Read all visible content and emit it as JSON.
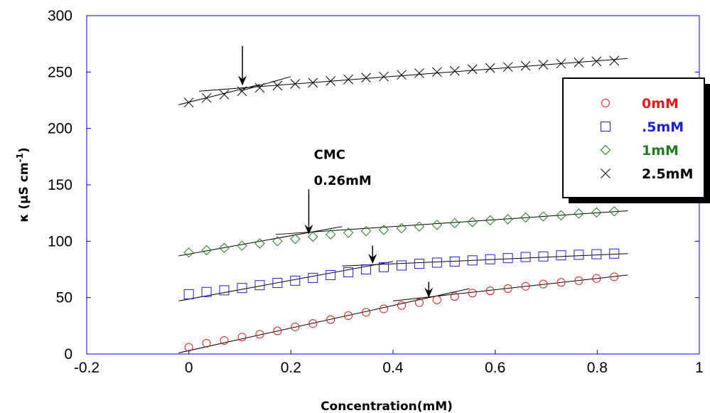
{
  "chart_data": {
    "type": "scatter",
    "xlabel": "Concentration(mM)",
    "ylabel": "κ (μS cm",
    "ylabel_sup": "-1",
    "ylabel_close": ")",
    "xlim": [
      -0.2,
      1.0
    ],
    "ylim": [
      0,
      300
    ],
    "xticks": [
      "-0.2",
      "0",
      "0.2",
      "0.4",
      "0.6",
      "0.8",
      "1"
    ],
    "yticks": [
      "0",
      "50",
      "100",
      "150",
      "200",
      "250",
      "300"
    ],
    "grid": false,
    "legend_position": "right",
    "series": [
      {
        "name": "0mM",
        "marker": "circle",
        "color": "#e31a1c",
        "x": [
          0,
          0.0347,
          0.0694,
          0.1042,
          0.1389,
          0.1736,
          0.2083,
          0.2431,
          0.2778,
          0.3125,
          0.3472,
          0.3819,
          0.4167,
          0.4514,
          0.4861,
          0.5208,
          0.5556,
          0.5903,
          0.625,
          0.6597,
          0.6944,
          0.7292,
          0.7639,
          0.7986,
          0.8333
        ],
        "y": [
          6,
          9.5,
          12,
          15,
          17.5,
          20.5,
          24,
          27,
          30.5,
          34,
          37,
          40,
          43,
          45.5,
          48,
          51,
          54,
          56,
          58,
          60,
          62,
          63.5,
          65,
          67,
          68.5
        ]
      },
      {
        "name": ".5mM",
        "marker": "square",
        "color": "#1f1fd6",
        "x": [
          0,
          0.0347,
          0.0694,
          0.1042,
          0.1389,
          0.1736,
          0.2083,
          0.2431,
          0.2778,
          0.3125,
          0.3472,
          0.3819,
          0.4167,
          0.4514,
          0.4861,
          0.5208,
          0.5556,
          0.5903,
          0.625,
          0.6597,
          0.6944,
          0.7292,
          0.7639,
          0.7986,
          0.8333
        ],
        "y": [
          53,
          55,
          56.5,
          58.5,
          61,
          63,
          65,
          67.5,
          70,
          72.5,
          75,
          77,
          78.5,
          80,
          81,
          82,
          83,
          84,
          85,
          86,
          86.5,
          87.5,
          88,
          88.5,
          89
        ]
      },
      {
        "name": "1mM",
        "marker": "diamond",
        "color": "#1e7b1e",
        "x": [
          0,
          0.0347,
          0.0694,
          0.1042,
          0.1389,
          0.1736,
          0.2083,
          0.2431,
          0.2778,
          0.3125,
          0.3472,
          0.3819,
          0.4167,
          0.4514,
          0.4861,
          0.5208,
          0.5556,
          0.5903,
          0.625,
          0.6597,
          0.6944,
          0.7292,
          0.7639,
          0.7986,
          0.8333
        ],
        "y": [
          90,
          92,
          94,
          96,
          98,
          100,
          102,
          104,
          106,
          107.5,
          109,
          110,
          111.5,
          113,
          114.5,
          116,
          117,
          118.5,
          119.5,
          121,
          122,
          123,
          124.5,
          125.5,
          126.5
        ]
      },
      {
        "name": "2.5mM",
        "marker": "x",
        "color": "#000000",
        "x": [
          0,
          0.0347,
          0.0694,
          0.1042,
          0.1389,
          0.1736,
          0.2083,
          0.2431,
          0.2778,
          0.3125,
          0.3472,
          0.3819,
          0.4167,
          0.4514,
          0.4861,
          0.5208,
          0.5556,
          0.5903,
          0.625,
          0.6597,
          0.6944,
          0.7292,
          0.7639,
          0.7986,
          0.8333
        ],
        "y": [
          223,
          227,
          230,
          233,
          236,
          238,
          239.5,
          240.5,
          242,
          243.5,
          245,
          246,
          247.5,
          249,
          250,
          251,
          252.5,
          253.5,
          254.5,
          255.5,
          256.5,
          257.5,
          258.5,
          259.5,
          260
        ]
      }
    ],
    "fit_lines": [
      {
        "x1": -0.02,
        "y1": 1,
        "x2": 0.55,
        "y2": 58
      },
      {
        "x1": 0.4,
        "y1": 47,
        "x2": 0.86,
        "y2": 70
      },
      {
        "x1": -0.02,
        "y1": 47,
        "x2": 0.4,
        "y2": 82
      },
      {
        "x1": 0.3,
        "y1": 78,
        "x2": 0.86,
        "y2": 89
      },
      {
        "x1": -0.02,
        "y1": 87,
        "x2": 0.3,
        "y2": 113
      },
      {
        "x1": 0.17,
        "y1": 106,
        "x2": 0.86,
        "y2": 127
      },
      {
        "x1": -0.02,
        "y1": 221,
        "x2": 0.14,
        "y2": 239
      },
      {
        "x1": 0.02,
        "y1": 233,
        "x2": 0.86,
        "y2": 262
      },
      {
        "x1": 0.1,
        "y1": 233,
        "x2": 0.2,
        "y2": 246
      }
    ],
    "arrows": [
      {
        "x": 0.105,
        "y_top": 273,
        "y_tip": 238
      },
      {
        "x": 0.235,
        "y_top": 146,
        "y_tip": 106
      },
      {
        "x": 0.36,
        "y_top": 96,
        "y_tip": 80
      },
      {
        "x": 0.47,
        "y_top": 64,
        "y_tip": 50
      }
    ],
    "annotations": [
      {
        "text": "CMC",
        "x": 0.245,
        "y": 173
      },
      {
        "text": "0.26mM",
        "x": 0.245,
        "y": 150
      }
    ]
  }
}
